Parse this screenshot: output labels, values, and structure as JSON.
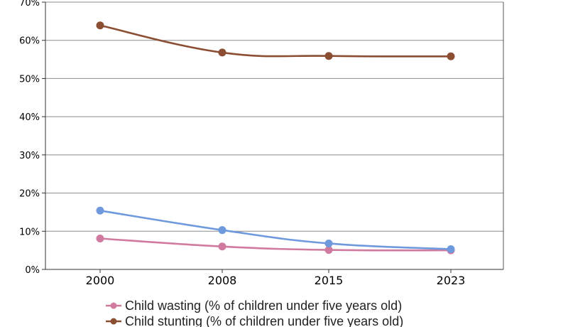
{
  "chart_data": {
    "type": "line",
    "categories": [
      "2000",
      "2008",
      "2015",
      "2023"
    ],
    "y_ticks": [
      "0%",
      "10%",
      "20%",
      "30%",
      "40%",
      "50%",
      "60%",
      "70%"
    ],
    "ylim": [
      0,
      70
    ],
    "grid": true,
    "legend_position": "bottom",
    "series": [
      {
        "name": "Child wasting (% of children under five years old)",
        "values": [
          8.1,
          6.0,
          5.1,
          5.0
        ],
        "color": "#d07a9f",
        "in_legend": true
      },
      {
        "name": "Child stunting (% of children under five years old)",
        "values": [
          63.9,
          56.8,
          55.9,
          55.8
        ],
        "color": "#8b4e33",
        "in_legend": true
      },
      {
        "values": [
          15.4,
          10.3,
          6.8,
          5.3
        ],
        "color": "#6e99dd",
        "in_legend": false
      }
    ]
  }
}
